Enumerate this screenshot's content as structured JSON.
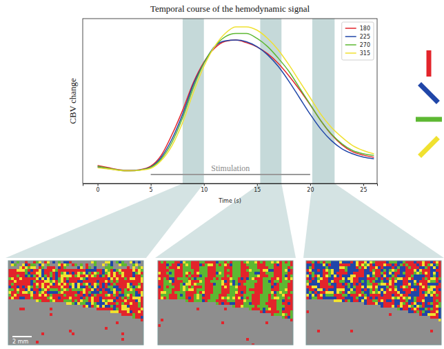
{
  "chart_data": {
    "type": "line",
    "title": "Temporal course of the hemodynamic signal",
    "x_label": "Time (s)",
    "y_label": "CBV change",
    "x": [
      0,
      1,
      2,
      3,
      4,
      5,
      6,
      7,
      8,
      9,
      10,
      11,
      12,
      13,
      14,
      15,
      16,
      17,
      18,
      19,
      20,
      21,
      22,
      23,
      24,
      25,
      26
    ],
    "series": [
      {
        "name": "180",
        "color": "#e3242b",
        "values": [
          0.109,
          0.096,
          0.084,
          0.079,
          0.084,
          0.105,
          0.172,
          0.297,
          0.444,
          0.611,
          0.736,
          0.82,
          0.862,
          0.87,
          0.854,
          0.828,
          0.787,
          0.728,
          0.653,
          0.569,
          0.477,
          0.381,
          0.297,
          0.234,
          0.192,
          0.172,
          0.159
        ]
      },
      {
        "name": "225",
        "color": "#2046a8",
        "values": [
          0.1,
          0.09,
          0.08,
          0.076,
          0.082,
          0.1,
          0.16,
          0.27,
          0.42,
          0.6,
          0.73,
          0.83,
          0.865,
          0.87,
          0.86,
          0.83,
          0.78,
          0.71,
          0.62,
          0.52,
          0.42,
          0.33,
          0.26,
          0.21,
          0.18,
          0.16,
          0.15
        ]
      },
      {
        "name": "270",
        "color": "#5db832",
        "values": [
          0.105,
          0.092,
          0.082,
          0.078,
          0.082,
          0.098,
          0.15,
          0.25,
          0.4,
          0.58,
          0.73,
          0.83,
          0.89,
          0.91,
          0.91,
          0.88,
          0.83,
          0.76,
          0.68,
          0.58,
          0.48,
          0.38,
          0.3,
          0.24,
          0.2,
          0.18,
          0.17
        ]
      },
      {
        "name": "315",
        "color": "#f0e130",
        "values": [
          0.095,
          0.088,
          0.08,
          0.076,
          0.08,
          0.092,
          0.14,
          0.23,
          0.37,
          0.55,
          0.71,
          0.83,
          0.91,
          0.95,
          0.95,
          0.93,
          0.88,
          0.81,
          0.72,
          0.62,
          0.52,
          0.42,
          0.34,
          0.28,
          0.23,
          0.2,
          0.18
        ]
      }
    ],
    "xlim": [
      -1.4,
      26.3
    ],
    "ylim": [
      0,
      1
    ],
    "xticks": [
      0,
      5,
      10,
      15,
      20,
      25
    ],
    "tick_labels": "x",
    "legend": "upper right",
    "highlight_windows": [
      [
        8,
        10
      ],
      [
        15.3,
        17.3
      ],
      [
        20.2,
        22.3
      ]
    ],
    "stimulation": {
      "label": "Stimulation",
      "start": 5,
      "end": 20
    },
    "scale_bar": "2 mm"
  }
}
